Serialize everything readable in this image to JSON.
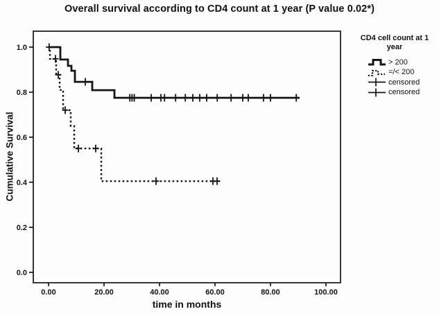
{
  "chart_data": {
    "type": "line",
    "subtype": "kaplan-meier-step",
    "title": "Overall survival according to CD4 count at 1 year (P value 0.02*)",
    "xlabel": "time in months",
    "ylabel": "Cumulative Survival",
    "xlim": [
      0,
      100
    ],
    "ylim": [
      0,
      1
    ],
    "grid": false,
    "x_ticks": [
      {
        "v": 0,
        "label": "0.00"
      },
      {
        "v": 20,
        "label": "20.00"
      },
      {
        "v": 40,
        "label": "40.00"
      },
      {
        "v": 60,
        "label": "60.00"
      },
      {
        "v": 80,
        "label": "80.00"
      },
      {
        "v": 100,
        "label": "100.00"
      }
    ],
    "y_ticks": [
      {
        "v": 0.0,
        "label": "0.0"
      },
      {
        "v": 0.2,
        "label": "0.2"
      },
      {
        "v": 0.4,
        "label": "0.4"
      },
      {
        "v": 0.6,
        "label": "0.6"
      },
      {
        "v": 0.8,
        "label": "0.8"
      },
      {
        "v": 1.0,
        "label": "1.0"
      }
    ],
    "series": [
      {
        "name": "> 200",
        "style": "solid",
        "steps": [
          [
            0,
            1.0
          ],
          [
            4.25,
            1.0
          ],
          [
            4.25,
            0.945
          ],
          [
            7,
            0.945
          ],
          [
            7,
            0.917
          ],
          [
            8.25,
            0.917
          ],
          [
            8.25,
            0.895
          ],
          [
            9.5,
            0.895
          ],
          [
            9.5,
            0.846
          ],
          [
            15.75,
            0.846
          ],
          [
            15.75,
            0.809
          ],
          [
            23.75,
            0.809
          ],
          [
            23.75,
            0.775
          ],
          [
            90.5,
            0.775
          ]
        ],
        "censored": [
          [
            13.25,
            0.846
          ],
          [
            29.3,
            0.775
          ],
          [
            30.1,
            0.775
          ],
          [
            30.9,
            0.775
          ],
          [
            37,
            0.775
          ],
          [
            40.5,
            0.775
          ],
          [
            41.8,
            0.775
          ],
          [
            45.8,
            0.775
          ],
          [
            49.3,
            0.775
          ],
          [
            52,
            0.775
          ],
          [
            54.5,
            0.775
          ],
          [
            57,
            0.775
          ],
          [
            60.8,
            0.775
          ],
          [
            65.8,
            0.775
          ],
          [
            70,
            0.775
          ],
          [
            72,
            0.775
          ],
          [
            77.5,
            0.775
          ],
          [
            80,
            0.775
          ],
          [
            89.3,
            0.775
          ]
        ]
      },
      {
        "name": "=/< 200",
        "style": "dotted",
        "steps": [
          [
            0,
            1.0
          ],
          [
            0.5,
            1.0
          ],
          [
            0.5,
            0.948
          ],
          [
            2.75,
            0.948
          ],
          [
            2.75,
            0.877
          ],
          [
            4,
            0.877
          ],
          [
            4,
            0.81
          ],
          [
            5.25,
            0.81
          ],
          [
            5.25,
            0.72
          ],
          [
            8,
            0.72
          ],
          [
            8,
            0.65
          ],
          [
            9.25,
            0.65
          ],
          [
            9.25,
            0.55
          ],
          [
            19,
            0.55
          ],
          [
            19,
            0.405
          ],
          [
            62,
            0.405
          ]
        ],
        "censored": [
          [
            0.2,
            1.0
          ],
          [
            2.5,
            0.948
          ],
          [
            3.5,
            0.877
          ],
          [
            6,
            0.72
          ],
          [
            10.75,
            0.55
          ],
          [
            17,
            0.55
          ],
          [
            38.75,
            0.405
          ],
          [
            59.25,
            0.405
          ],
          [
            60.75,
            0.405
          ]
        ]
      }
    ],
    "legend": {
      "position": "right",
      "title": "CD4 cell count at 1 year",
      "entries": [
        {
          "label": "> 200",
          "symbol": "solid-step"
        },
        {
          "label": "=/< 200",
          "symbol": "dotted-step"
        },
        {
          "label": "censored",
          "symbol": "censor-cross"
        },
        {
          "label": "censored",
          "symbol": "censor-cross"
        }
      ]
    },
    "colors": {
      "line": "#141414",
      "background": "#fdfdfd"
    }
  }
}
